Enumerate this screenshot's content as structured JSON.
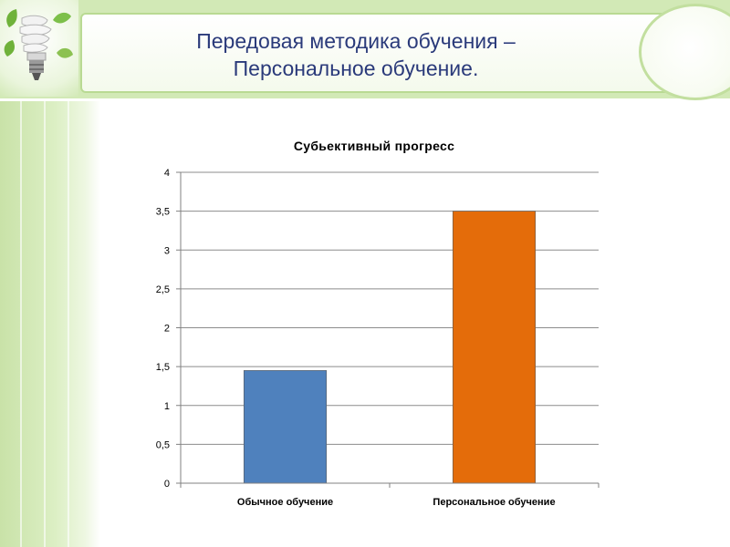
{
  "slide": {
    "title_line1": "Передовая методика обучения –",
    "title_line2": "Персональное обучение."
  },
  "colors": {
    "header_bg": "#d2e9b6",
    "accent_green": "#8cc152",
    "title_text": "#2a3a7a"
  },
  "chart_data": {
    "type": "bar",
    "title": "Субьективный прогресс",
    "categories": [
      "Обычное обучение",
      "Персональное обучение"
    ],
    "values": [
      1.45,
      3.5
    ],
    "bar_colors": [
      "#4f81bd",
      "#e46c0a"
    ],
    "ylim": [
      0,
      4
    ],
    "yticks": [
      "0",
      "0,5",
      "1",
      "1,5",
      "2",
      "2,5",
      "3",
      "3,5",
      "4"
    ],
    "grid": true,
    "legend": "none"
  }
}
